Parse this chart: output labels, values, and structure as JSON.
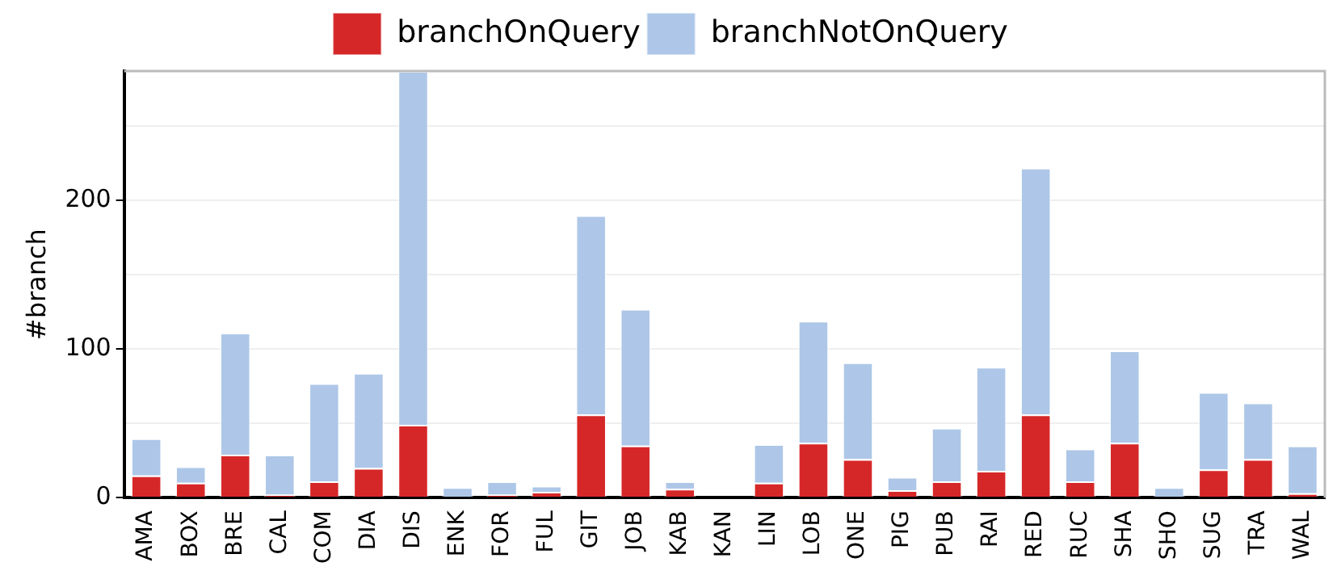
{
  "chart_data": {
    "type": "bar",
    "stacked": true,
    "ylabel": "#branch",
    "legend": "top",
    "grid": "y",
    "categories": [
      "AMA",
      "BOX",
      "BRE",
      "CAL",
      "COM",
      "DIA",
      "DIS",
      "ENK",
      "FOR",
      "FUL",
      "GIT",
      "JOB",
      "KAB",
      "KAN",
      "LIN",
      "LOB",
      "ONE",
      "PIG",
      "PUB",
      "RAI",
      "RED",
      "RUC",
      "SHA",
      "SHO",
      "SUG",
      "TRA",
      "WAL"
    ],
    "ylim": [
      0,
      287
    ],
    "yticks": [
      0,
      {
        "value": 50,
        "label": null
      },
      100,
      {
        "value": 150,
        "label": null
      },
      200,
      {
        "value": 250,
        "label": null
      }
    ],
    "series": [
      {
        "name": "branchOnQuery",
        "color": "#d62728",
        "values": [
          15,
          10,
          29,
          2,
          11,
          20,
          49,
          0,
          2,
          4,
          56,
          35,
          6,
          0,
          10,
          37,
          26,
          5,
          11,
          18,
          56,
          11,
          37,
          0,
          19,
          26,
          3
        ]
      },
      {
        "name": "branchNotOnQuery",
        "color": "#aec7e8",
        "values": [
          25,
          11,
          82,
          27,
          66,
          64,
          238,
          7,
          9,
          4,
          134,
          92,
          5,
          0,
          26,
          82,
          65,
          9,
          36,
          70,
          166,
          22,
          62,
          7,
          52,
          38,
          32
        ]
      }
    ]
  }
}
